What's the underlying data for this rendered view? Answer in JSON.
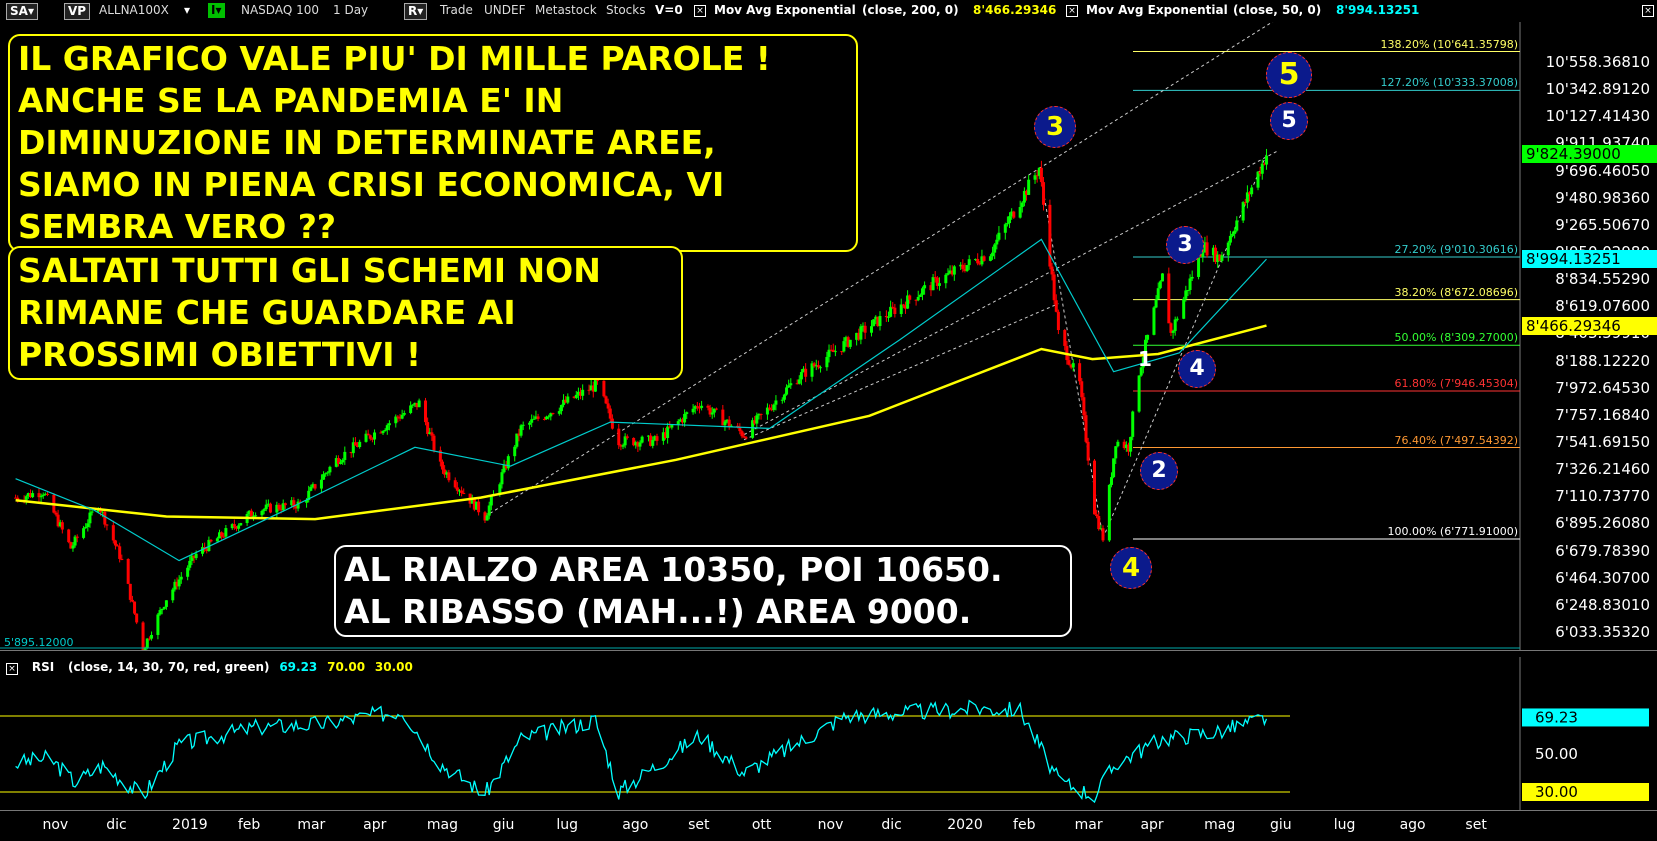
{
  "toolbar": {
    "sa": "SA",
    "vp": "VP",
    "symbol": "ALLNA100X",
    "indicator_mode": "I",
    "instrument": "NASDAQ 100",
    "interval": "1 Day",
    "r": "R",
    "trade": "Trade",
    "undef": "UNDEF",
    "source": "Metastock",
    "stocks": "Stocks",
    "volume": "V=0",
    "ma1_name": "Mov Avg Exponential",
    "ma1_params": "(close, 200, 0)",
    "ma1_value": "8'466.29346",
    "ma2_name": "Mov Avg Exponential",
    "ma2_params": "(close, 50, 0)",
    "ma2_value": "8'994.13251",
    "checkbox_glyph": "×",
    "dropdown_glyph": "▾"
  },
  "rsi_panel": {
    "name": "RSI",
    "params": "(close, 14, 30, 70, red, green)",
    "value": "69.23",
    "upper": "70.00",
    "lower": "30.00",
    "ylabels": [
      "69.23",
      "50.00",
      "30.00"
    ]
  },
  "annotations": {
    "callout1": "IL GRAFICO VALE PIU' DI MILLE PAROLE !\nANCHE SE LA PANDEMIA E' IN\nDIMINUZIONE IN DETERMINATE AREE,\nSIAMO IN PIENA CRISI ECONOMICA, VI\nSEMBRA VERO ??",
    "callout2": "SALTATI TUTTI GLI SCHEMI NON\nRIMANE CHE GUARDARE AI\nPROSSIMI OBIETTIVI !",
    "callout3": "AL RIALZO AREA 10350, POI 10650.\nAL RIBASSO (MAH...!) AREA 9000.",
    "low_label": "5'895.12000"
  },
  "waves": [
    {
      "label": "3",
      "style": "yellow"
    },
    {
      "label": "4",
      "style": "yellow"
    },
    {
      "label": "5",
      "style": "yellow"
    },
    {
      "label": "5",
      "style": "white"
    },
    {
      "label": "3",
      "style": "white"
    },
    {
      "label": "1",
      "style": "white"
    },
    {
      "label": "4",
      "style": "white"
    },
    {
      "label": "2",
      "style": "white"
    }
  ],
  "fib_levels": [
    {
      "label": "138.20% (10'641.35798)",
      "value": 10641.36,
      "color": "#ffff66"
    },
    {
      "label": "127.20% (10'333.37008)",
      "value": 10333.37,
      "color": "#33cccc"
    },
    {
      "label": "27.20% (9'010.30616)",
      "value": 9010.31,
      "color": "#33cccc"
    },
    {
      "label": "38.20% (8'672.08696)",
      "value": 8672.09,
      "color": "#ffff66"
    },
    {
      "label": "50.00% (8'309.27000)",
      "value": 8309.27,
      "color": "#33ff33"
    },
    {
      "label": "61.80% (7'946.45304)",
      "value": 7946.45,
      "color": "#ff3333"
    },
    {
      "label": "76.40% (7'497.54392)",
      "value": 7497.54,
      "color": "#ff9933"
    },
    {
      "label": "100.00% (6'771.91000)",
      "value": 6771.91,
      "color": "#ffffff"
    }
  ],
  "price_tags": [
    {
      "label": "9'824.39000",
      "value": 9824.39,
      "bg": "#00ff00"
    },
    {
      "label": "8'994.13251",
      "value": 8994.13,
      "bg": "#00ffff"
    },
    {
      "label": "8'466.29346",
      "value": 8466.29,
      "bg": "#ffff00"
    }
  ],
  "chart_data": {
    "type": "candlestick",
    "title": "NASDAQ 100 1 Day",
    "ylim": [
      5900,
      10850
    ],
    "x_ticks": [
      "nov",
      "dic",
      "2019",
      "feb",
      "mar",
      "apr",
      "mag",
      "giu",
      "lug",
      "ago",
      "set",
      "ott",
      "nov",
      "dic",
      "2020",
      "feb",
      "mar",
      "apr",
      "mag",
      "giu",
      "lug",
      "ago",
      "set"
    ],
    "y_ticks": [
      "10'558.36810",
      "10'342.89120",
      "10'127.41430",
      "9'911.93740",
      "9'696.46050",
      "9'480.98360",
      "9'265.50670",
      "9'050.02980",
      "8'834.55290",
      "8'619.07600",
      "8'403.59910",
      "8'188.12220",
      "7'972.64530",
      "7'757.16840",
      "7'541.69150",
      "7'326.21460",
      "7'110.73770",
      "6'895.26080",
      "6'679.78390",
      "6'464.30700",
      "6'248.83010",
      "6'033.35320"
    ],
    "close_path": [
      {
        "date": "2018-10-25",
        "close": 7100
      },
      {
        "date": "2018-11-07",
        "close": 7150
      },
      {
        "date": "2018-11-20",
        "close": 6700
      },
      {
        "date": "2018-12-03",
        "close": 7050
      },
      {
        "date": "2018-12-14",
        "close": 6600
      },
      {
        "date": "2018-12-24",
        "close": 5900
      },
      {
        "date": "2019-01-04",
        "close": 6300
      },
      {
        "date": "2019-01-18",
        "close": 6650
      },
      {
        "date": "2019-02-15",
        "close": 7000
      },
      {
        "date": "2019-03-08",
        "close": 7050
      },
      {
        "date": "2019-03-25",
        "close": 7400
      },
      {
        "date": "2019-04-15",
        "close": 7650
      },
      {
        "date": "2019-05-03",
        "close": 7850
      },
      {
        "date": "2019-05-13",
        "close": 7350
      },
      {
        "date": "2019-06-03",
        "close": 6950
      },
      {
        "date": "2019-06-20",
        "close": 7650
      },
      {
        "date": "2019-07-26",
        "close": 8000
      },
      {
        "date": "2019-08-05",
        "close": 7550
      },
      {
        "date": "2019-08-23",
        "close": 7550
      },
      {
        "date": "2019-09-12",
        "close": 7850
      },
      {
        "date": "2019-10-03",
        "close": 7600
      },
      {
        "date": "2019-10-28",
        "close": 8050
      },
      {
        "date": "2019-11-26",
        "close": 8400
      },
      {
        "date": "2019-12-31",
        "close": 8800
      },
      {
        "date": "2020-01-27",
        "close": 9050
      },
      {
        "date": "2020-02-19",
        "close": 9720
      },
      {
        "date": "2020-02-28",
        "close": 8400
      },
      {
        "date": "2020-03-09",
        "close": 8000
      },
      {
        "date": "2020-03-16",
        "close": 7000
      },
      {
        "date": "2020-03-20",
        "close": 6780
      },
      {
        "date": "2020-03-26",
        "close": 7550
      },
      {
        "date": "2020-04-01",
        "close": 7500
      },
      {
        "date": "2020-04-06",
        "close": 8100
      },
      {
        "date": "2020-04-17",
        "close": 8850
      },
      {
        "date": "2020-04-21",
        "close": 8400
      },
      {
        "date": "2020-05-06",
        "close": 9100
      },
      {
        "date": "2020-05-14",
        "close": 9000
      },
      {
        "date": "2020-06-05",
        "close": 9824
      }
    ],
    "ema200_path": [
      {
        "date": "2018-10-25",
        "value": 7080
      },
      {
        "date": "2019-01-04",
        "value": 6950
      },
      {
        "date": "2019-03-15",
        "value": 6930
      },
      {
        "date": "2019-06-01",
        "value": 7100
      },
      {
        "date": "2019-09-01",
        "value": 7400
      },
      {
        "date": "2019-12-01",
        "value": 7750
      },
      {
        "date": "2020-02-20",
        "value": 8280
      },
      {
        "date": "2020-03-15",
        "value": 8200
      },
      {
        "date": "2020-04-15",
        "value": 8240
      },
      {
        "date": "2020-06-05",
        "value": 8466
      }
    ],
    "ema50_path": [
      {
        "date": "2018-10-25",
        "value": 7250
      },
      {
        "date": "2018-12-01",
        "value": 7000
      },
      {
        "date": "2019-01-10",
        "value": 6600
      },
      {
        "date": "2019-03-01",
        "value": 7000
      },
      {
        "date": "2019-05-01",
        "value": 7500
      },
      {
        "date": "2019-06-15",
        "value": 7350
      },
      {
        "date": "2019-08-01",
        "value": 7700
      },
      {
        "date": "2019-10-15",
        "value": 7650
      },
      {
        "date": "2019-12-15",
        "value": 8350
      },
      {
        "date": "2020-02-20",
        "value": 9150
      },
      {
        "date": "2020-03-25",
        "value": 8100
      },
      {
        "date": "2020-04-25",
        "value": 8250
      },
      {
        "date": "2020-06-05",
        "value": 8994
      }
    ],
    "rsi_path": [
      {
        "date": "2018-10-25",
        "value": 45
      },
      {
        "date": "2018-11-10",
        "value": 48
      },
      {
        "date": "2018-11-22",
        "value": 35
      },
      {
        "date": "2018-12-05",
        "value": 44
      },
      {
        "date": "2018-12-24",
        "value": 28
      },
      {
        "date": "2019-01-10",
        "value": 55
      },
      {
        "date": "2019-02-15",
        "value": 64
      },
      {
        "date": "2019-03-20",
        "value": 66
      },
      {
        "date": "2019-04-25",
        "value": 73
      },
      {
        "date": "2019-05-13",
        "value": 45
      },
      {
        "date": "2019-06-03",
        "value": 29
      },
      {
        "date": "2019-06-20",
        "value": 58
      },
      {
        "date": "2019-07-25",
        "value": 68
      },
      {
        "date": "2019-08-05",
        "value": 30
      },
      {
        "date": "2019-09-12",
        "value": 60
      },
      {
        "date": "2019-10-03",
        "value": 40
      },
      {
        "date": "2019-11-20",
        "value": 70
      },
      {
        "date": "2019-12-20",
        "value": 72
      },
      {
        "date": "2020-01-20",
        "value": 74
      },
      {
        "date": "2020-02-10",
        "value": 73
      },
      {
        "date": "2020-02-28",
        "value": 36
      },
      {
        "date": "2020-03-16",
        "value": 28
      },
      {
        "date": "2020-03-26",
        "value": 45
      },
      {
        "date": "2020-04-17",
        "value": 58
      },
      {
        "date": "2020-05-14",
        "value": 62
      },
      {
        "date": "2020-06-05",
        "value": 69
      }
    ],
    "rsi_levels": [
      70,
      30
    ],
    "up_color": "#00ff00",
    "down_color": "#ff0000",
    "ema200_color": "#ffff00",
    "ema50_color": "#00cccc"
  }
}
